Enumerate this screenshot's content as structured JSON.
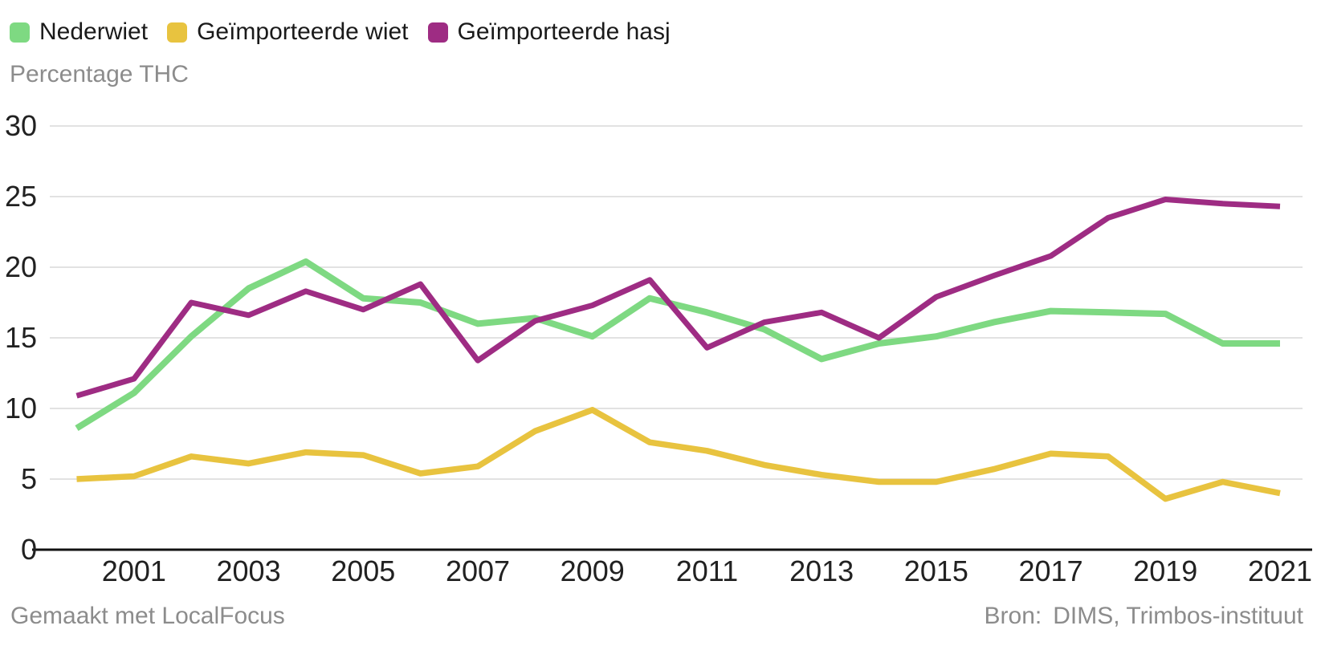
{
  "footer": {
    "made_with": "Gemaakt met LocalFocus",
    "source_label": "Bron:",
    "source_value": "DIMS, Trimbos-instituut"
  },
  "chart_data": {
    "type": "line",
    "title": "",
    "ylabel": "Percentage THC",
    "xlabel": "",
    "grid": true,
    "legend_position": "top-left",
    "ylim": [
      0,
      30
    ],
    "yticks": [
      0,
      5,
      10,
      15,
      20,
      25,
      30
    ],
    "xticks": [
      2001,
      2003,
      2005,
      2007,
      2009,
      2011,
      2013,
      2015,
      2017,
      2019,
      2021
    ],
    "x": [
      2000,
      2001,
      2002,
      2003,
      2004,
      2005,
      2006,
      2007,
      2008,
      2009,
      2010,
      2011,
      2012,
      2013,
      2014,
      2015,
      2016,
      2017,
      2018,
      2019,
      2020,
      2021
    ],
    "series": [
      {
        "name": "Nederwiet",
        "color": "#7ed982",
        "values": [
          8.6,
          11.1,
          15.1,
          18.5,
          20.4,
          17.8,
          17.5,
          16.0,
          16.4,
          15.1,
          17.8,
          16.8,
          15.6,
          13.5,
          14.6,
          15.1,
          16.1,
          16.9,
          16.8,
          16.7,
          14.6,
          14.6
        ]
      },
      {
        "name": "Geïmporteerde wiet",
        "color": "#e8c33f",
        "values": [
          5.0,
          5.2,
          6.6,
          6.1,
          6.9,
          6.7,
          5.4,
          5.9,
          8.4,
          9.9,
          7.6,
          7.0,
          6.0,
          5.3,
          4.8,
          4.8,
          5.7,
          6.8,
          6.6,
          3.6,
          4.8,
          4.0
        ]
      },
      {
        "name": "Geïmporteerde hasj",
        "color": "#9e2c83",
        "values": [
          10.9,
          12.1,
          17.5,
          16.6,
          18.3,
          17.0,
          18.8,
          13.4,
          16.2,
          17.3,
          19.1,
          14.3,
          16.1,
          16.8,
          15.0,
          17.9,
          19.4,
          20.8,
          23.5,
          24.8,
          24.5,
          24.3
        ]
      }
    ],
    "colors": {
      "grid": "#e2e2e2",
      "axis": "#111111",
      "tick_text": "#212121",
      "muted_text": "#8c8c8c"
    }
  }
}
